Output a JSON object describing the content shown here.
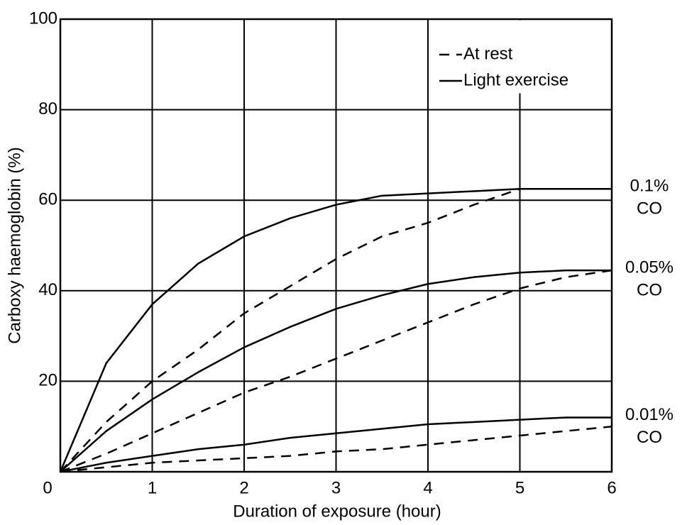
{
  "chart_data": {
    "type": "line",
    "xlabel": "Duration of exposure (hour)",
    "ylabel": "Carboxy haemoglobin (%)",
    "x": [
      0,
      0.5,
      1,
      1.5,
      2,
      2.5,
      3,
      3.5,
      4,
      4.5,
      5,
      5.5,
      6
    ],
    "xlim": [
      0,
      6
    ],
    "xticks": [
      0,
      1,
      2,
      3,
      4,
      5,
      6
    ],
    "ylim": [
      0,
      100
    ],
    "yticks": [
      20,
      40,
      60,
      80,
      100
    ],
    "grid": true,
    "legend_position": "upper right",
    "series": [
      {
        "name": "At rest",
        "color": "#000000",
        "dash": "14,10",
        "curves": [
          {
            "values": [
              0,
              11,
              20,
              27,
              35,
              41,
              47,
              52,
              55,
              59,
              62.5,
              62.5,
              62.5
            ]
          },
          {
            "values": [
              0,
              4,
              8.5,
              13,
              17.5,
              21,
              25,
              29,
              33,
              37,
              40.5,
              43,
              44.5
            ]
          },
          {
            "values": [
              0,
              1,
              2,
              2.5,
              3,
              3.5,
              4.5,
              5,
              6,
              7,
              8,
              9,
              10
            ]
          }
        ]
      },
      {
        "name": "Light exercise",
        "color": "#000000",
        "dash": "none",
        "curves": [
          {
            "values": [
              0,
              24,
              37,
              46,
              52,
              56,
              59,
              61,
              61.5,
              62,
              62.5,
              62.5,
              62.5
            ]
          },
          {
            "values": [
              0,
              9,
              16,
              22,
              27.5,
              32,
              36,
              39,
              41.5,
              43,
              44,
              44.5,
              44.5
            ]
          },
          {
            "values": [
              0,
              2,
              3.5,
              5,
              6,
              7.5,
              8.5,
              9.5,
              10.5,
              11,
              11.5,
              12,
              12
            ]
          }
        ]
      }
    ],
    "annotations": [
      {
        "lines": [
          "0.1%",
          "CO"
        ]
      },
      {
        "lines": [
          "0.05%",
          "CO"
        ]
      },
      {
        "lines": [
          "0.01%",
          "CO"
        ]
      }
    ]
  }
}
